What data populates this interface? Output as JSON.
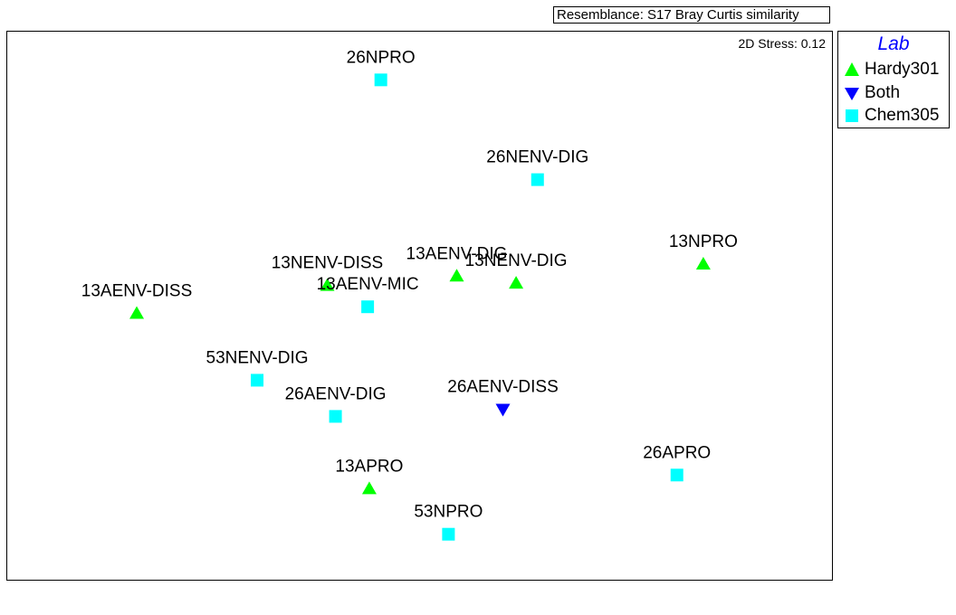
{
  "header": {
    "resemblance": "Resemblance: S17 Bray Curtis similarity"
  },
  "plot": {
    "stress": "2D Stress: 0.12"
  },
  "legend": {
    "title": "Lab",
    "items": [
      {
        "label": "Hardy301",
        "symbol": "triangle-up",
        "color": "#00ff00"
      },
      {
        "label": "Both",
        "symbol": "triangle-down",
        "color": "#0000ff"
      },
      {
        "label": "Chem305",
        "symbol": "square",
        "color": "#00ffff"
      }
    ]
  },
  "chart_data": {
    "type": "scatter",
    "title": "",
    "xlabel": "",
    "ylabel": "",
    "grid": false,
    "legend_placement": "right",
    "xlim": [
      0,
      100
    ],
    "ylim": [
      0,
      100
    ],
    "points": [
      {
        "label": "26NPRO",
        "group": "Chem305",
        "x": 45.3,
        "y": 91.2
      },
      {
        "label": "26NENV-DIG",
        "group": "Chem305",
        "x": 64.3,
        "y": 73.0
      },
      {
        "label": "13NPRO",
        "group": "Hardy301",
        "x": 84.4,
        "y": 57.6
      },
      {
        "label": "13AENV-DIG",
        "group": "Hardy301",
        "x": 54.5,
        "y": 55.4
      },
      {
        "label": "13NENV-DIG",
        "group": "Hardy301",
        "x": 61.7,
        "y": 54.1
      },
      {
        "label": "13NENV-DISS",
        "group": "Hardy301",
        "x": 38.8,
        "y": 53.7
      },
      {
        "label": "13AENV-MIC",
        "group": "Chem305",
        "x": 43.7,
        "y": 49.8
      },
      {
        "label": "13AENV-DISS",
        "group": "Hardy301",
        "x": 15.7,
        "y": 48.6
      },
      {
        "label": "53NENV-DIG",
        "group": "Chem305",
        "x": 30.3,
        "y": 36.4
      },
      {
        "label": "26AENV-DISS",
        "group": "Both",
        "x": 60.1,
        "y": 31.1
      },
      {
        "label": "26AENV-DIG",
        "group": "Chem305",
        "x": 39.8,
        "y": 29.8
      },
      {
        "label": "26APRO",
        "group": "Chem305",
        "x": 81.2,
        "y": 19.1
      },
      {
        "label": "13APRO",
        "group": "Hardy301",
        "x": 43.9,
        "y": 16.6
      },
      {
        "label": "53NPRO",
        "group": "Chem305",
        "x": 53.5,
        "y": 8.3
      }
    ]
  }
}
